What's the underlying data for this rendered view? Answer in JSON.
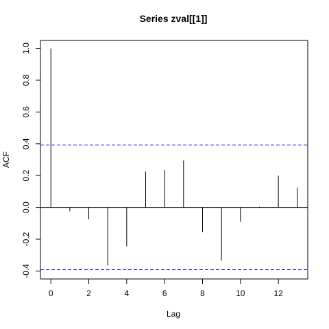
{
  "chart_data": {
    "type": "bar",
    "title": "Series  zval[[1]]",
    "xlabel": "Lag",
    "ylabel": "ACF",
    "x": [
      0,
      1,
      2,
      3,
      4,
      5,
      6,
      7,
      8,
      9,
      10,
      11,
      12,
      13
    ],
    "values": [
      1.0,
      -0.025,
      -0.075,
      -0.365,
      -0.245,
      0.225,
      0.235,
      0.295,
      -0.155,
      -0.335,
      -0.09,
      0.005,
      0.2,
      0.125
    ],
    "xlim": [
      -0.55,
      13.55
    ],
    "ylim": [
      -0.45,
      1.05
    ],
    "x_ticks": [
      "0",
      "2",
      "4",
      "6",
      "8",
      "10",
      "12"
    ],
    "y_ticks": [
      "-0.4",
      "-0.2",
      "0.0",
      "0.2",
      "0.4",
      "0.6",
      "0.8",
      "1.0"
    ],
    "confidence_bounds": [
      0.392,
      -0.392
    ],
    "confidence_color": "#0000cc",
    "bar_color": "#000000",
    "grid": false
  }
}
